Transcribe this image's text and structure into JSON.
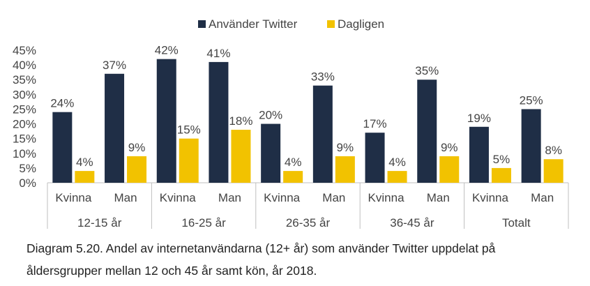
{
  "chart_data": {
    "type": "bar",
    "legend_position": "top-center",
    "grid": false,
    "ylim": [
      0,
      45
    ],
    "yticks": [
      "0%",
      "5%",
      "10%",
      "15%",
      "20%",
      "25%",
      "30%",
      "35%",
      "40%",
      "45%"
    ],
    "groups": [
      {
        "label": "12-15 år",
        "categories": [
          "Kvinna",
          "Man"
        ]
      },
      {
        "label": "16-25 år",
        "categories": [
          "Kvinna",
          "Man"
        ]
      },
      {
        "label": "26-35 år",
        "categories": [
          "Kvinna",
          "Man"
        ]
      },
      {
        "label": "36-45 år",
        "categories": [
          "Kvinna",
          "Man"
        ]
      },
      {
        "label": "Totalt",
        "categories": [
          "Kvinna",
          "Man"
        ]
      }
    ],
    "series": [
      {
        "name": "Använder Twitter",
        "color": "#1f2e46",
        "values": [
          24,
          37,
          42,
          41,
          20,
          33,
          17,
          35,
          19,
          25
        ]
      },
      {
        "name": "Dagligen",
        "color": "#f2c200",
        "values": [
          4,
          9,
          15,
          18,
          4,
          9,
          4,
          9,
          5,
          8
        ]
      }
    ],
    "value_suffix": "%"
  },
  "caption": {
    "line1": "Diagram 5.20. Andel av internetanvändarna (12+ år) som använder Twitter uppdelat på",
    "line2": "åldersgrupper mellan 12 och 45 år samt kön, år 2018."
  }
}
